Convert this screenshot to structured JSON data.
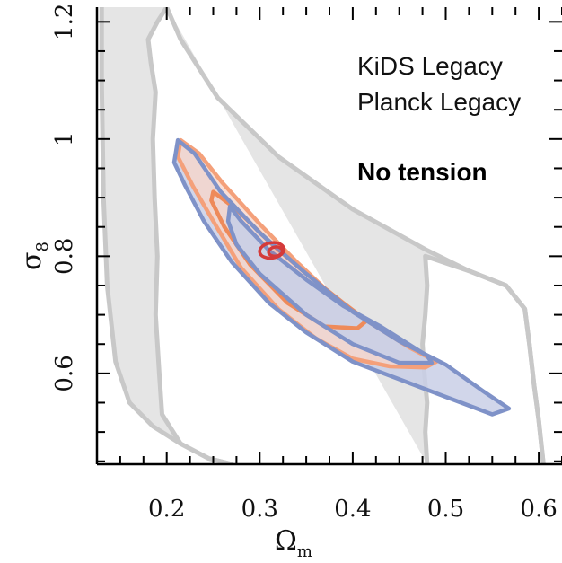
{
  "chart_data": {
    "type": "contour",
    "xlabel_main": "Ω",
    "xlabel_sub": "m",
    "ylabel_main": "σ",
    "ylabel_sub": "8",
    "xlim": [
      0.125,
      0.625
    ],
    "ylim": [
      0.445,
      1.225
    ],
    "x_ticks": [
      0.2,
      0.3,
      0.4,
      0.5,
      0.6
    ],
    "x_tick_labels": [
      "0.2",
      "0.3",
      "0.4",
      "0.5",
      "0.6"
    ],
    "y_ticks": [
      0.6,
      0.8,
      1.0,
      1.2
    ],
    "y_tick_labels": [
      "0.6",
      "0.8",
      "1",
      "1.2"
    ],
    "legend": [
      "KiDS Legacy",
      "Planck Legacy"
    ],
    "annotation": "No tension",
    "colors": {
      "prior": "#c8c8c8",
      "prior_fill": "#e5e5e5",
      "kids_outer": "#f4a07a",
      "kids_inner": "#ee8a5a",
      "kids_fill": "#f6d6cb",
      "blue_outer": "#7f92c8",
      "blue_fill": "#c9cfe6",
      "planck": "#d43a3a"
    },
    "series": [
      {
        "color_key": "prior",
        "role": "outer region boundary",
        "points": [
          [
            0.13,
            1.225
          ],
          [
            0.13,
            1.1
          ],
          [
            0.132,
            0.9
          ],
          [
            0.136,
            0.75
          ],
          [
            0.145,
            0.62
          ],
          [
            0.16,
            0.55
          ],
          [
            0.185,
            0.51
          ],
          [
            0.215,
            0.48
          ],
          [
            0.245,
            0.455
          ],
          [
            0.27,
            0.445
          ]
        ]
      },
      {
        "color_key": "prior",
        "role": "inner region boundary",
        "points": [
          [
            0.2,
            1.225
          ],
          [
            0.215,
            1.17
          ],
          [
            0.255,
            1.07
          ],
          [
            0.32,
            0.97
          ],
          [
            0.4,
            0.88
          ],
          [
            0.48,
            0.81
          ],
          [
            0.525,
            0.775
          ],
          [
            0.565,
            0.75
          ],
          [
            0.585,
            0.71
          ],
          [
            0.59,
            0.65
          ],
          [
            0.595,
            0.58
          ],
          [
            0.6,
            0.52
          ],
          [
            0.605,
            0.445
          ]
        ]
      },
      {
        "color_key": "prior",
        "role": "left region boundary",
        "points": [
          [
            0.2,
            1.225
          ],
          [
            0.19,
            1.2
          ],
          [
            0.18,
            1.17
          ],
          [
            0.183,
            1.13
          ],
          [
            0.188,
            1.08
          ],
          [
            0.185,
            1.0
          ],
          [
            0.187,
            0.9
          ],
          [
            0.19,
            0.8
          ],
          [
            0.188,
            0.7
          ],
          [
            0.192,
            0.6
          ],
          [
            0.195,
            0.53
          ],
          [
            0.215,
            0.48
          ],
          [
            0.245,
            0.455
          ],
          [
            0.27,
            0.445
          ]
        ]
      },
      {
        "color_key": "prior",
        "role": "right region boundary",
        "points": [
          [
            0.48,
            0.445
          ],
          [
            0.478,
            0.5
          ],
          [
            0.48,
            0.55
          ],
          [
            0.477,
            0.6
          ],
          [
            0.475,
            0.65
          ],
          [
            0.478,
            0.7
          ],
          [
            0.48,
            0.75
          ],
          [
            0.478,
            0.8
          ],
          [
            0.525,
            0.775
          ],
          [
            0.565,
            0.75
          ],
          [
            0.585,
            0.71
          ],
          [
            0.59,
            0.65
          ],
          [
            0.595,
            0.58
          ],
          [
            0.6,
            0.52
          ],
          [
            0.605,
            0.445
          ]
        ]
      },
      {
        "color_key": "kids_outer",
        "role": "KiDS Legacy 95% contour",
        "points": [
          [
            0.215,
            0.998
          ],
          [
            0.235,
            0.975
          ],
          [
            0.26,
            0.925
          ],
          [
            0.3,
            0.855
          ],
          [
            0.34,
            0.79
          ],
          [
            0.38,
            0.73
          ],
          [
            0.42,
            0.685
          ],
          [
            0.46,
            0.645
          ],
          [
            0.49,
            0.62
          ],
          [
            0.478,
            0.61
          ],
          [
            0.44,
            0.612
          ],
          [
            0.4,
            0.625
          ],
          [
            0.36,
            0.66
          ],
          [
            0.32,
            0.71
          ],
          [
            0.28,
            0.78
          ],
          [
            0.25,
            0.86
          ],
          [
            0.228,
            0.92
          ],
          [
            0.212,
            0.97
          ]
        ]
      },
      {
        "color_key": "kids_inner",
        "role": "KiDS Legacy 68% contour",
        "points": [
          [
            0.25,
            0.91
          ],
          [
            0.275,
            0.88
          ],
          [
            0.31,
            0.825
          ],
          [
            0.35,
            0.77
          ],
          [
            0.39,
            0.72
          ],
          [
            0.415,
            0.69
          ],
          [
            0.405,
            0.677
          ],
          [
            0.37,
            0.68
          ],
          [
            0.33,
            0.72
          ],
          [
            0.29,
            0.785
          ],
          [
            0.262,
            0.85
          ],
          [
            0.248,
            0.895
          ]
        ]
      },
      {
        "color_key": "blue_outer",
        "role": "blue 95% contour",
        "points": [
          [
            0.212,
            0.998
          ],
          [
            0.23,
            0.975
          ],
          [
            0.258,
            0.91
          ],
          [
            0.3,
            0.84
          ],
          [
            0.35,
            0.77
          ],
          [
            0.4,
            0.705
          ],
          [
            0.45,
            0.655
          ],
          [
            0.5,
            0.615
          ],
          [
            0.54,
            0.57
          ],
          [
            0.568,
            0.54
          ],
          [
            0.55,
            0.53
          ],
          [
            0.5,
            0.56
          ],
          [
            0.45,
            0.59
          ],
          [
            0.4,
            0.62
          ],
          [
            0.35,
            0.67
          ],
          [
            0.31,
            0.72
          ],
          [
            0.27,
            0.79
          ],
          [
            0.24,
            0.86
          ],
          [
            0.22,
            0.92
          ],
          [
            0.208,
            0.96
          ]
        ]
      },
      {
        "color_key": "blue_outer",
        "role": "blue 68% contour",
        "points": [
          [
            0.268,
            0.885
          ],
          [
            0.28,
            0.86
          ],
          [
            0.31,
            0.81
          ],
          [
            0.35,
            0.76
          ],
          [
            0.39,
            0.715
          ],
          [
            0.43,
            0.68
          ],
          [
            0.48,
            0.63
          ],
          [
            0.485,
            0.618
          ],
          [
            0.45,
            0.618
          ],
          [
            0.4,
            0.65
          ],
          [
            0.35,
            0.7
          ],
          [
            0.3,
            0.77
          ],
          [
            0.275,
            0.82
          ],
          [
            0.266,
            0.86
          ]
        ]
      },
      {
        "color_key": "planck",
        "role": "Planck Legacy contours",
        "ellipses": [
          {
            "center": [
              0.313,
              0.81
            ],
            "rx": 0.015,
            "ry": 0.021,
            "rotation_deg": -8
          },
          {
            "center": [
              0.317,
              0.808
            ],
            "rx": 0.009,
            "ry": 0.012,
            "rotation_deg": -8
          }
        ]
      }
    ]
  }
}
